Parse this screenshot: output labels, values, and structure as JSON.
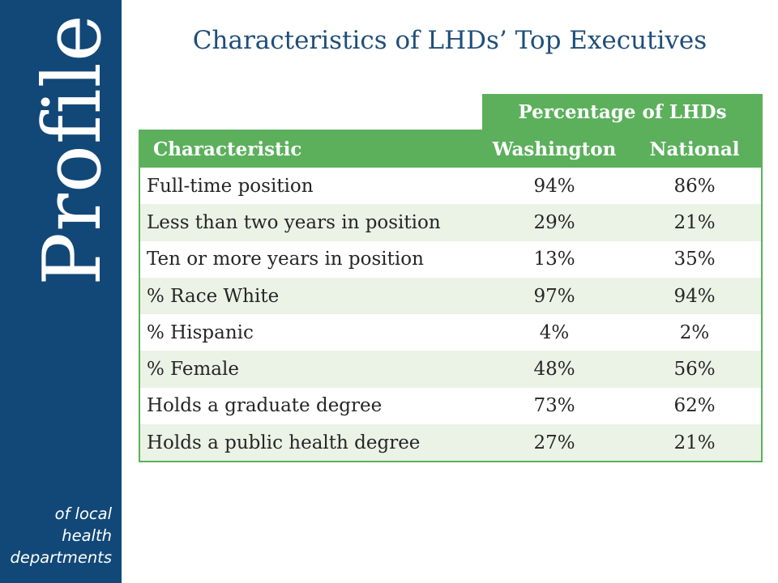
{
  "sidebar": {
    "brand": "Profile",
    "tagline": [
      "of local",
      "health",
      "departments"
    ]
  },
  "slide": {
    "title": "Characteristics of LHDs’ Top Executives"
  },
  "table": {
    "group_header": "Percentage of LHDs",
    "columns": [
      "Characteristic",
      "Washington",
      "National"
    ],
    "rows": [
      [
        "Full-time position",
        "94%",
        "86%"
      ],
      [
        "Less than two years in position",
        "29%",
        "21%"
      ],
      [
        "Ten or more years in position",
        "13%",
        "35%"
      ],
      [
        "% Race White",
        "97%",
        "94%"
      ],
      [
        "% Hispanic",
        "4%",
        "2%"
      ],
      [
        "% Female",
        "48%",
        "56%"
      ],
      [
        "Holds a graduate degree",
        "73%",
        "62%"
      ],
      [
        "Holds a public health degree",
        "27%",
        "21%"
      ]
    ]
  },
  "colors": {
    "sidebar": "#124878",
    "title": "#1f4e79",
    "table_header": "#5cb05c",
    "stripe": "#eaf3e6"
  }
}
